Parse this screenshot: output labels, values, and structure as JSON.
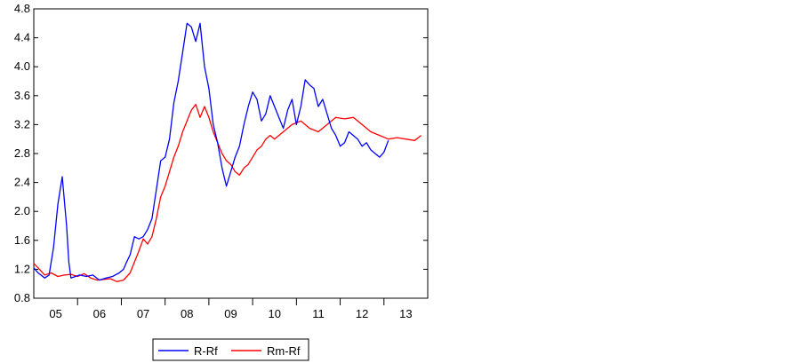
{
  "chart_data": {
    "type": "line",
    "title": "",
    "xlabel": "",
    "ylabel": "",
    "xlim": [
      2004.5,
      2013.5
    ],
    "ylim": [
      0.8,
      4.8
    ],
    "y_ticks": [
      0.8,
      1.2,
      1.6,
      2.0,
      2.4,
      2.8,
      3.2,
      3.6,
      4.0,
      4.4,
      4.8
    ],
    "y_tick_labels": [
      "0.8",
      "1.2",
      "1.6",
      "2.0",
      "2.4",
      "2.8",
      "3.2",
      "3.6",
      "4.0",
      "4.4",
      "4.8"
    ],
    "x_tick_labels": [
      "05",
      "06",
      "07",
      "08",
      "09",
      "10",
      "11",
      "12",
      "13"
    ],
    "x_tick_positions": [
      2005,
      2006,
      2007,
      2008,
      2009,
      2010,
      2011,
      2012,
      2013
    ],
    "grid": false,
    "legend_position": "bottom",
    "series": [
      {
        "name": "R-Rf",
        "color": "#0000ff",
        "x": [
          2004.5,
          2004.6,
          2004.75,
          2004.85,
          2004.95,
          2005.05,
          2005.15,
          2005.25,
          2005.3,
          2005.35,
          2005.45,
          2005.55,
          2005.7,
          2005.85,
          2006.0,
          2006.15,
          2006.3,
          2006.45,
          2006.55,
          2006.62,
          2006.7,
          2006.8,
          2006.9,
          2007.0,
          2007.1,
          2007.2,
          2007.3,
          2007.4,
          2007.5,
          2007.6,
          2007.7,
          2007.8,
          2007.9,
          2008.0,
          2008.1,
          2008.2,
          2008.3,
          2008.4,
          2008.5,
          2008.6,
          2008.7,
          2008.8,
          2008.9,
          2009.0,
          2009.1,
          2009.2,
          2009.3,
          2009.4,
          2009.5,
          2009.6,
          2009.7,
          2009.8,
          2009.9,
          2010.0,
          2010.1,
          2010.2,
          2010.3,
          2010.4,
          2010.5,
          2010.6,
          2010.7,
          2010.8,
          2010.9,
          2011.0,
          2011.1,
          2011.2,
          2011.3,
          2011.4,
          2011.5,
          2011.6,
          2011.7,
          2011.8,
          2011.9,
          2012.0,
          2012.1,
          2012.2,
          2012.3,
          2012.4,
          2012.5,
          2012.6
        ],
        "values": [
          1.22,
          1.15,
          1.08,
          1.12,
          1.5,
          2.1,
          2.48,
          1.8,
          1.3,
          1.08,
          1.1,
          1.12,
          1.1,
          1.12,
          1.05,
          1.08,
          1.1,
          1.15,
          1.2,
          1.3,
          1.4,
          1.65,
          1.62,
          1.65,
          1.75,
          1.9,
          2.3,
          2.7,
          2.75,
          3.0,
          3.5,
          3.8,
          4.2,
          4.6,
          4.55,
          4.35,
          4.6,
          4.0,
          3.7,
          3.2,
          2.95,
          2.6,
          2.35,
          2.55,
          2.75,
          2.9,
          3.2,
          3.45,
          3.65,
          3.55,
          3.25,
          3.35,
          3.6,
          3.45,
          3.3,
          3.15,
          3.4,
          3.55,
          3.2,
          3.45,
          3.82,
          3.75,
          3.7,
          3.45,
          3.55,
          3.35,
          3.15,
          3.05,
          2.9,
          2.95,
          3.1,
          3.05,
          3.0,
          2.9,
          2.95,
          2.85,
          2.8,
          2.75,
          2.82,
          2.98
        ]
      },
      {
        "name": "Rm-Rf",
        "color": "#ff0000",
        "x": [
          2004.5,
          2004.6,
          2004.75,
          2004.9,
          2005.05,
          2005.2,
          2005.35,
          2005.5,
          2005.65,
          2005.8,
          2005.95,
          2006.1,
          2006.25,
          2006.4,
          2006.55,
          2006.7,
          2006.8,
          2006.9,
          2007.0,
          2007.1,
          2007.2,
          2007.3,
          2007.4,
          2007.5,
          2007.6,
          2007.7,
          2007.8,
          2007.9,
          2008.0,
          2008.1,
          2008.2,
          2008.3,
          2008.4,
          2008.5,
          2008.6,
          2008.7,
          2008.8,
          2008.9,
          2009.0,
          2009.1,
          2009.2,
          2009.3,
          2009.4,
          2009.5,
          2009.6,
          2009.7,
          2009.8,
          2009.9,
          2010.0,
          2010.2,
          2010.4,
          2010.6,
          2010.8,
          2011.0,
          2011.2,
          2011.4,
          2011.6,
          2011.8,
          2012.0,
          2012.2,
          2012.4,
          2012.6,
          2012.8,
          2013.0,
          2013.2,
          2013.35
        ],
        "values": [
          1.28,
          1.22,
          1.12,
          1.15,
          1.1,
          1.12,
          1.13,
          1.1,
          1.14,
          1.08,
          1.05,
          1.06,
          1.07,
          1.03,
          1.05,
          1.15,
          1.3,
          1.45,
          1.62,
          1.55,
          1.65,
          1.9,
          2.2,
          2.35,
          2.55,
          2.75,
          2.9,
          3.1,
          3.25,
          3.4,
          3.48,
          3.3,
          3.45,
          3.3,
          3.1,
          2.95,
          2.8,
          2.7,
          2.65,
          2.55,
          2.5,
          2.6,
          2.65,
          2.75,
          2.85,
          2.9,
          3.0,
          3.05,
          3.0,
          3.1,
          3.2,
          3.25,
          3.15,
          3.1,
          3.2,
          3.3,
          3.28,
          3.3,
          3.2,
          3.1,
          3.05,
          3.0,
          3.02,
          3.0,
          2.98,
          3.05
        ]
      }
    ]
  }
}
